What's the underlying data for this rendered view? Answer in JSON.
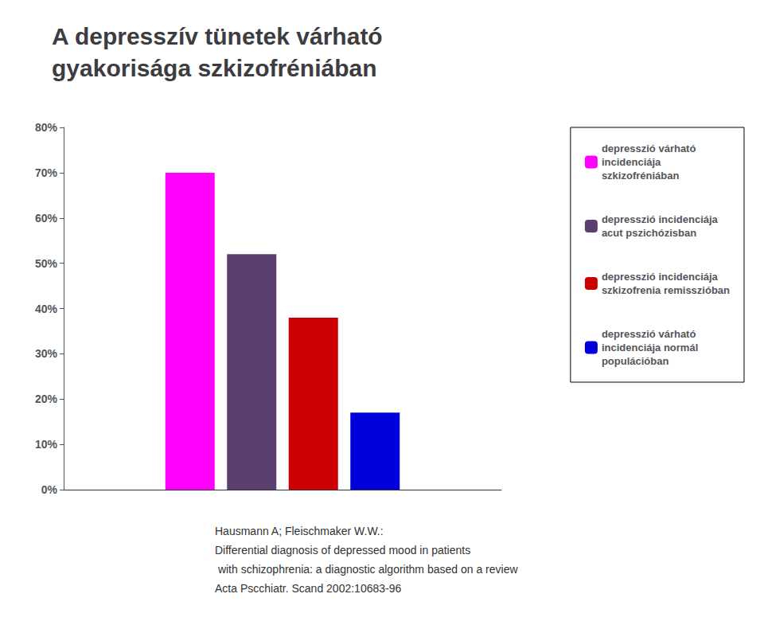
{
  "chart_data": {
    "type": "bar",
    "title": "A depresszív tünetek várható\ngyakorisága szkizofréniában",
    "categories": [
      null
    ],
    "series": [
      {
        "name": "depresszió várható\nincidenciája\nszkizofréniában",
        "color": "#ff00ff",
        "values": [
          0.7
        ]
      },
      {
        "name": "depresszió incidenciája\nacut pszichózisban",
        "color": "#5a4070",
        "values": [
          0.52
        ]
      },
      {
        "name": "depresszió incidenciája\nszkizofrenia remisszióban",
        "color": "#cc0000",
        "values": [
          0.38
        ]
      },
      {
        "name": "depresszió várható\nincidenciája normál\npopulációban",
        "color": "#0000dd",
        "values": [
          0.17
        ]
      }
    ],
    "ylim": [
      0,
      0.8
    ],
    "yticks": [
      {
        "value": 0.0,
        "label": "0%"
      },
      {
        "value": 0.1,
        "label": "10%"
      },
      {
        "value": 0.2,
        "label": "20%"
      },
      {
        "value": 0.3,
        "label": "30%"
      },
      {
        "value": 0.4,
        "label": "40%"
      },
      {
        "value": 0.5,
        "label": "50%"
      },
      {
        "value": 0.6,
        "label": "60%"
      },
      {
        "value": 0.7,
        "label": "70%"
      },
      {
        "value": 0.8,
        "label": "80%"
      }
    ],
    "tick_labels": "y",
    "grid": false,
    "legend": "right",
    "annotations": [
      "Hausmann A; Fleischmaker W.W.:",
      "Differential diagnosis of depressed mood in patients",
      " with schizophrenia: a diagnostic algorithm based on a review",
      "Acta Pscchiatr. Scand 2002:10683-96"
    ]
  }
}
